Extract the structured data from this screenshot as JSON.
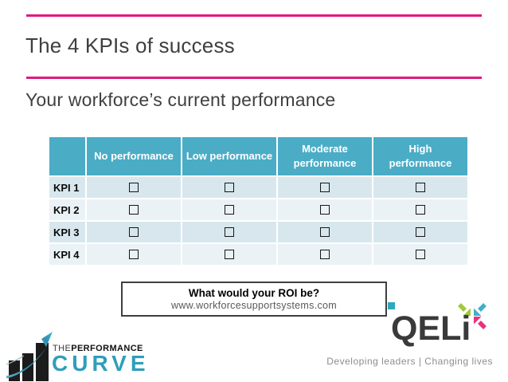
{
  "slide": {
    "title": "The 4 KPIs of success",
    "subtitle": "Your workforce’s current performance"
  },
  "colors": {
    "accent_pink": "#DE1B7E",
    "table_header_teal": "#4BACC6",
    "row_band_dark": "#D8E7EE",
    "row_band_light": "#EAF2F6",
    "qeli_arrow_green": "#A4C739",
    "qeli_arrow_teal": "#3FB0CB",
    "qeli_arrow_pink": "#E8337E",
    "curve_teal": "#2E9EBC"
  },
  "table": {
    "columns": [
      "",
      "No performance",
      "Low performance",
      "Moderate performance",
      "High performance"
    ],
    "rows": [
      {
        "label": "KPI 1",
        "cells": [
          "unchecked",
          "unchecked",
          "unchecked",
          "unchecked"
        ]
      },
      {
        "label": "KPI 2",
        "cells": [
          "unchecked",
          "unchecked",
          "unchecked",
          "unchecked"
        ]
      },
      {
        "label": "KPI 3",
        "cells": [
          "unchecked",
          "unchecked",
          "unchecked",
          "unchecked"
        ]
      },
      {
        "label": "KPI 4",
        "cells": [
          "unchecked",
          "unchecked",
          "unchecked",
          "unchecked"
        ]
      }
    ]
  },
  "roi_box": {
    "heading": "What would your ROI be?",
    "url": "www.workforcesupportsystems.com"
  },
  "footer": {
    "performance_curve": {
      "word_the": "THE",
      "word_performance": "PERFORMANCE",
      "word_curve": "CURVE"
    },
    "qeli": {
      "wordmark": "QELi",
      "tagline": "Developing leaders | Changing lives"
    }
  }
}
